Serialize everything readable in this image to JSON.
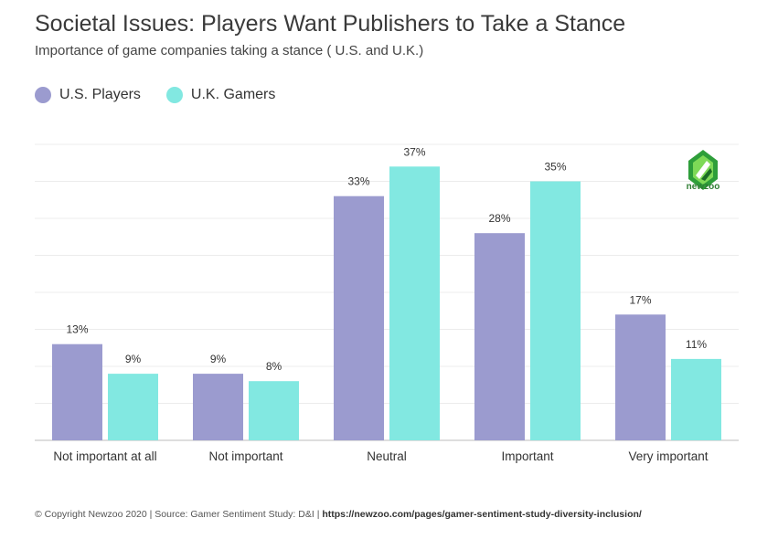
{
  "header": {
    "title": "Societal Issues: Players Want Publishers to Take a Stance",
    "subtitle": "Importance of game companies taking a stance ( U.S. and U.K.)"
  },
  "legend": {
    "items": [
      {
        "label": "U.S. Players",
        "color": "#9b9bcf"
      },
      {
        "label": "U.K. Gamers",
        "color": "#82e8e1"
      }
    ]
  },
  "logo": {
    "text": "newzoo",
    "color": "#2e9e3a"
  },
  "footer": {
    "text": "© Copyright Newzoo 2020 | Source: Gamer Sentiment Study: D&I | ",
    "link": "https://newzoo.com/pages/gamer-sentiment-study-diversity-inclusion/"
  },
  "chart_data": {
    "type": "bar",
    "categories": [
      "Not important at all",
      "Not important",
      "Neutral",
      "Important",
      "Very important"
    ],
    "series": [
      {
        "name": "U.S. Players",
        "values": [
          13,
          9,
          33,
          28,
          17
        ],
        "color": "#9b9bcf"
      },
      {
        "name": "U.K. Gamers",
        "values": [
          9,
          8,
          37,
          35,
          11
        ],
        "color": "#82e8e1"
      }
    ],
    "value_suffix": "%",
    "ylim": [
      0,
      40
    ],
    "grid": true,
    "legend": "top-left"
  }
}
